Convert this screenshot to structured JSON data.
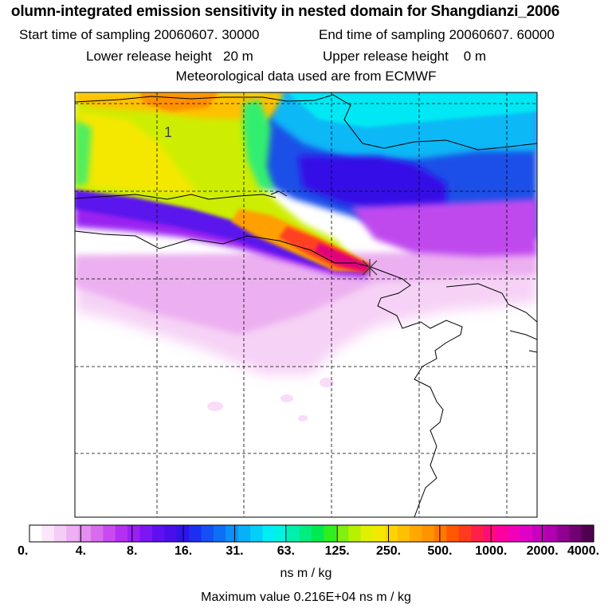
{
  "header": {
    "title": "olumn-integrated emission sensitivity in nested domain for Shangdianzi_2006",
    "start_label": "Start time of sampling 20060607. 30000",
    "end_label": "End time of sampling 20060607. 60000",
    "lower_label": "Lower release height   20 m",
    "upper_label": "Upper release height    0 m",
    "met_label": "Meteorological data used are from ECMWF"
  },
  "map": {
    "contour_label": "1",
    "release_marker": "x-icon"
  },
  "colorbar": {
    "tick_labels": [
      "0.",
      "4.",
      "8.",
      "16.",
      "31.",
      "63.",
      "125.",
      "250.",
      "500.",
      "1000.",
      "2000.",
      "4000."
    ],
    "colors": [
      "#ffffff",
      "#fbe6fb",
      "#f5ccf5",
      "#eeb0f2",
      "#e38ef0",
      "#d86cef",
      "#c94af0",
      "#b52ff0",
      "#9a1ff2",
      "#7c16f2",
      "#5e10f0",
      "#4a0ee8",
      "#2d14e8",
      "#1c2ff0",
      "#1450f4",
      "#0c70f6",
      "#0a90f8",
      "#08b0f8",
      "#05cef8",
      "#00eef6",
      "#00f2e0",
      "#00f0b0",
      "#00ee80",
      "#00ea50",
      "#30ee20",
      "#80f010",
      "#b8f000",
      "#e0f000",
      "#f2e800",
      "#fcd400",
      "#ffc000",
      "#ffa800",
      "#ff9400",
      "#ff7800",
      "#ff5800",
      "#ff3a20",
      "#ff2048",
      "#ff0c78",
      "#ff00a0",
      "#f000b8",
      "#e000c8",
      "#c800c0",
      "#b000b0",
      "#900090",
      "#700070",
      "#500050"
    ],
    "units": "ns m / kg"
  },
  "footer": {
    "max_value": "Maximum value  0.216E+04 ns m / kg"
  }
}
